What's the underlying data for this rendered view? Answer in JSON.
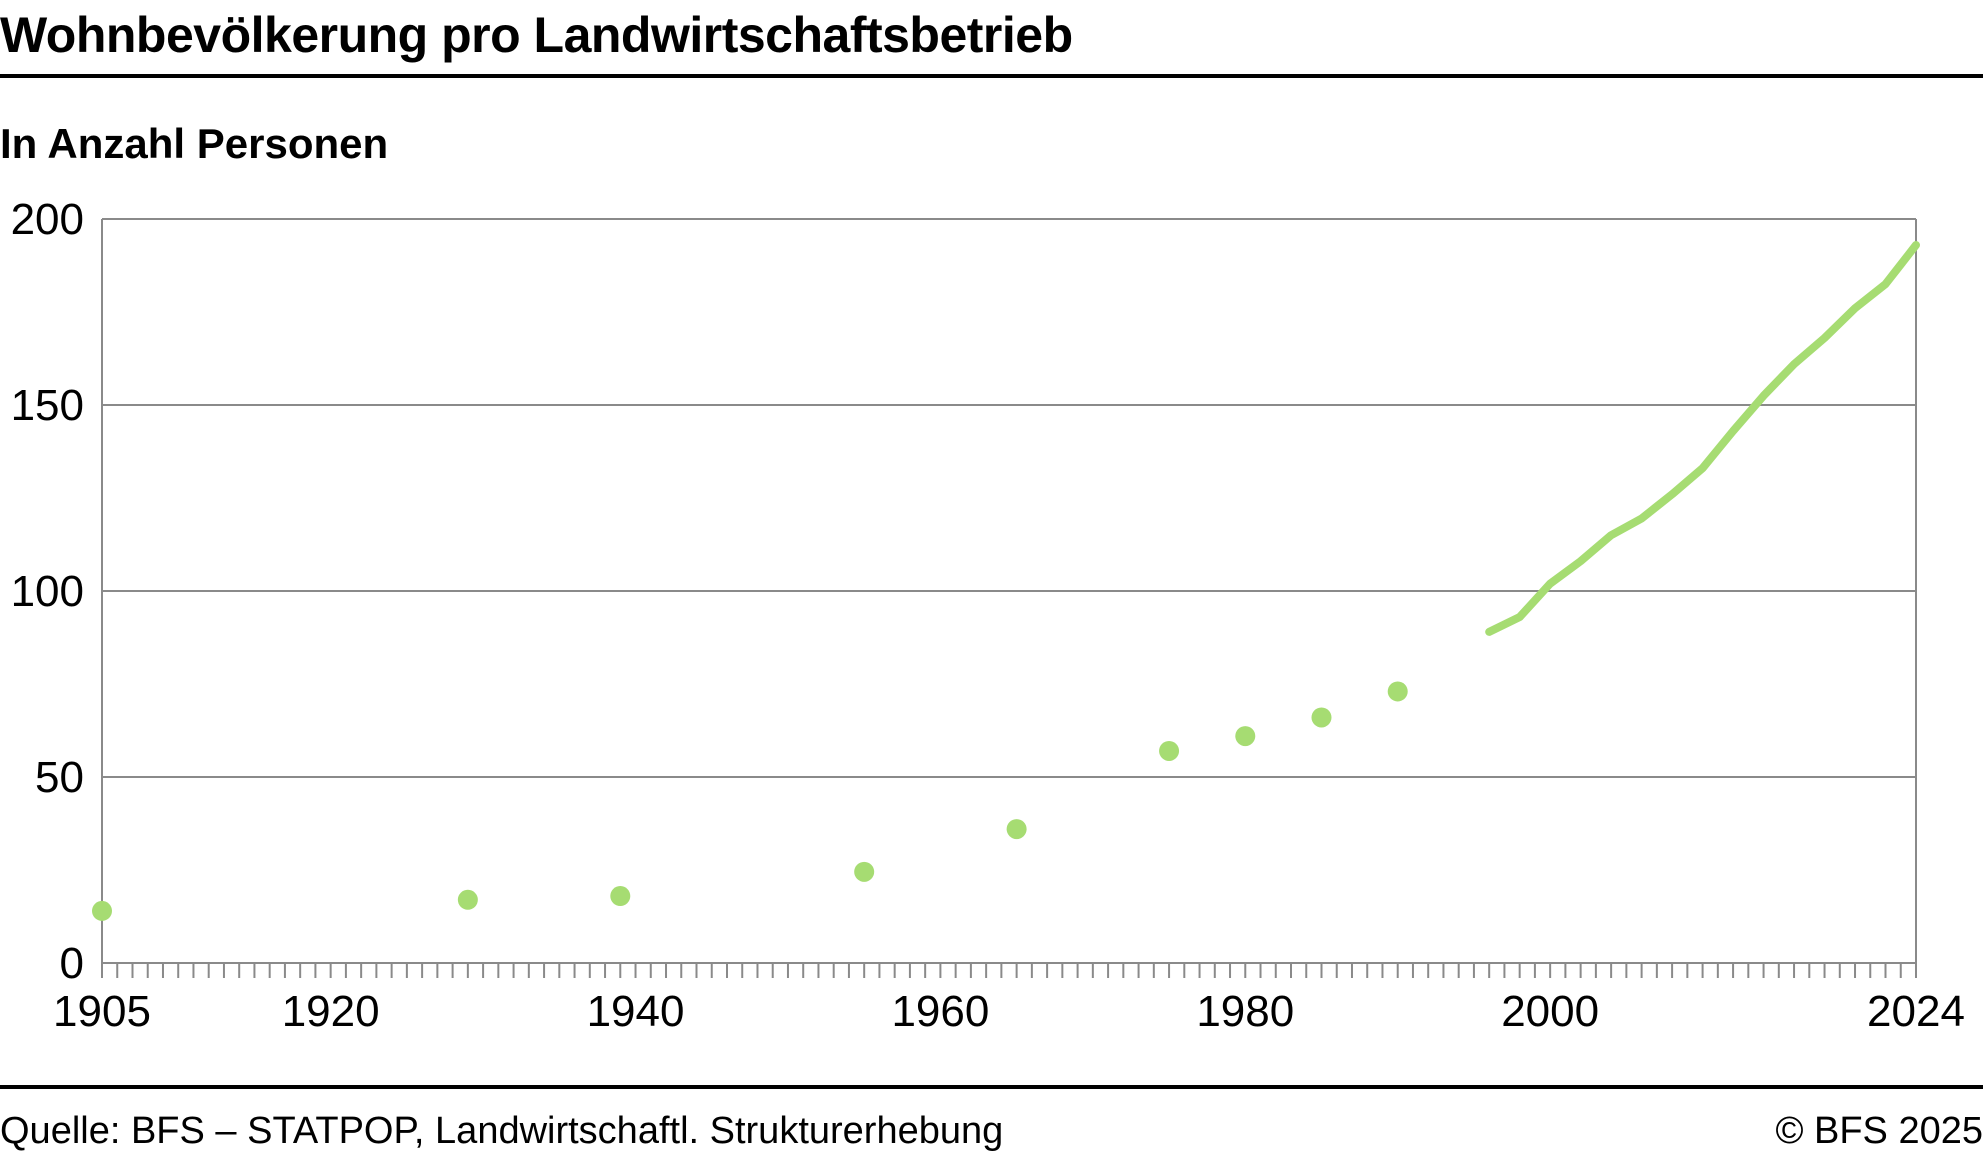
{
  "header": {
    "title": "Wohnbevölkerung pro Landwirtschaftsbetrieb",
    "subtitle": "In Anzahl Personen"
  },
  "footer": {
    "source": "Quelle: BFS – STATPOP, Landwirtschaftl. Strukturerhebung",
    "copyright": "© BFS 2025"
  },
  "colors": {
    "series": "#a6dc72",
    "grid": "#8a8a8a",
    "axis": "#8a8a8a"
  },
  "chart_data": {
    "type": "line",
    "title": "Wohnbevölkerung pro Landwirtschaftsbetrieb",
    "subtitle": "In Anzahl Personen",
    "xlim": [
      1905,
      2024
    ],
    "ylim": [
      0,
      200
    ],
    "x_tick_labels": [
      "1905",
      "1920",
      "1940",
      "1960",
      "1980",
      "2000",
      "2024"
    ],
    "y_tick_labels": [
      "0",
      "50",
      "100",
      "150",
      "200"
    ],
    "grid": true,
    "legend": "none",
    "series": [
      {
        "style": "points",
        "points": [
          {
            "x": 1905,
            "y": 14
          },
          {
            "x": 1929,
            "y": 17
          },
          {
            "x": 1939,
            "y": 18
          },
          {
            "x": 1955,
            "y": 24.5
          },
          {
            "x": 1965,
            "y": 36
          },
          {
            "x": 1975,
            "y": 57
          },
          {
            "x": 1980,
            "y": 61
          },
          {
            "x": 1985,
            "y": 66
          },
          {
            "x": 1990,
            "y": 73
          }
        ]
      },
      {
        "style": "line",
        "points": [
          {
            "x": 1996,
            "y": 89
          },
          {
            "x": 1998,
            "y": 93
          },
          {
            "x": 2000,
            "y": 102
          },
          {
            "x": 2002,
            "y": 108
          },
          {
            "x": 2004,
            "y": 115
          },
          {
            "x": 2006,
            "y": 119.5
          },
          {
            "x": 2008,
            "y": 126
          },
          {
            "x": 2010,
            "y": 133
          },
          {
            "x": 2011,
            "y": 138
          },
          {
            "x": 2012,
            "y": 143
          },
          {
            "x": 2014,
            "y": 152.5
          },
          {
            "x": 2016,
            "y": 161
          },
          {
            "x": 2018,
            "y": 168
          },
          {
            "x": 2020,
            "y": 176
          },
          {
            "x": 2022,
            "y": 182.5
          },
          {
            "x": 2024,
            "y": 193
          }
        ]
      }
    ]
  }
}
